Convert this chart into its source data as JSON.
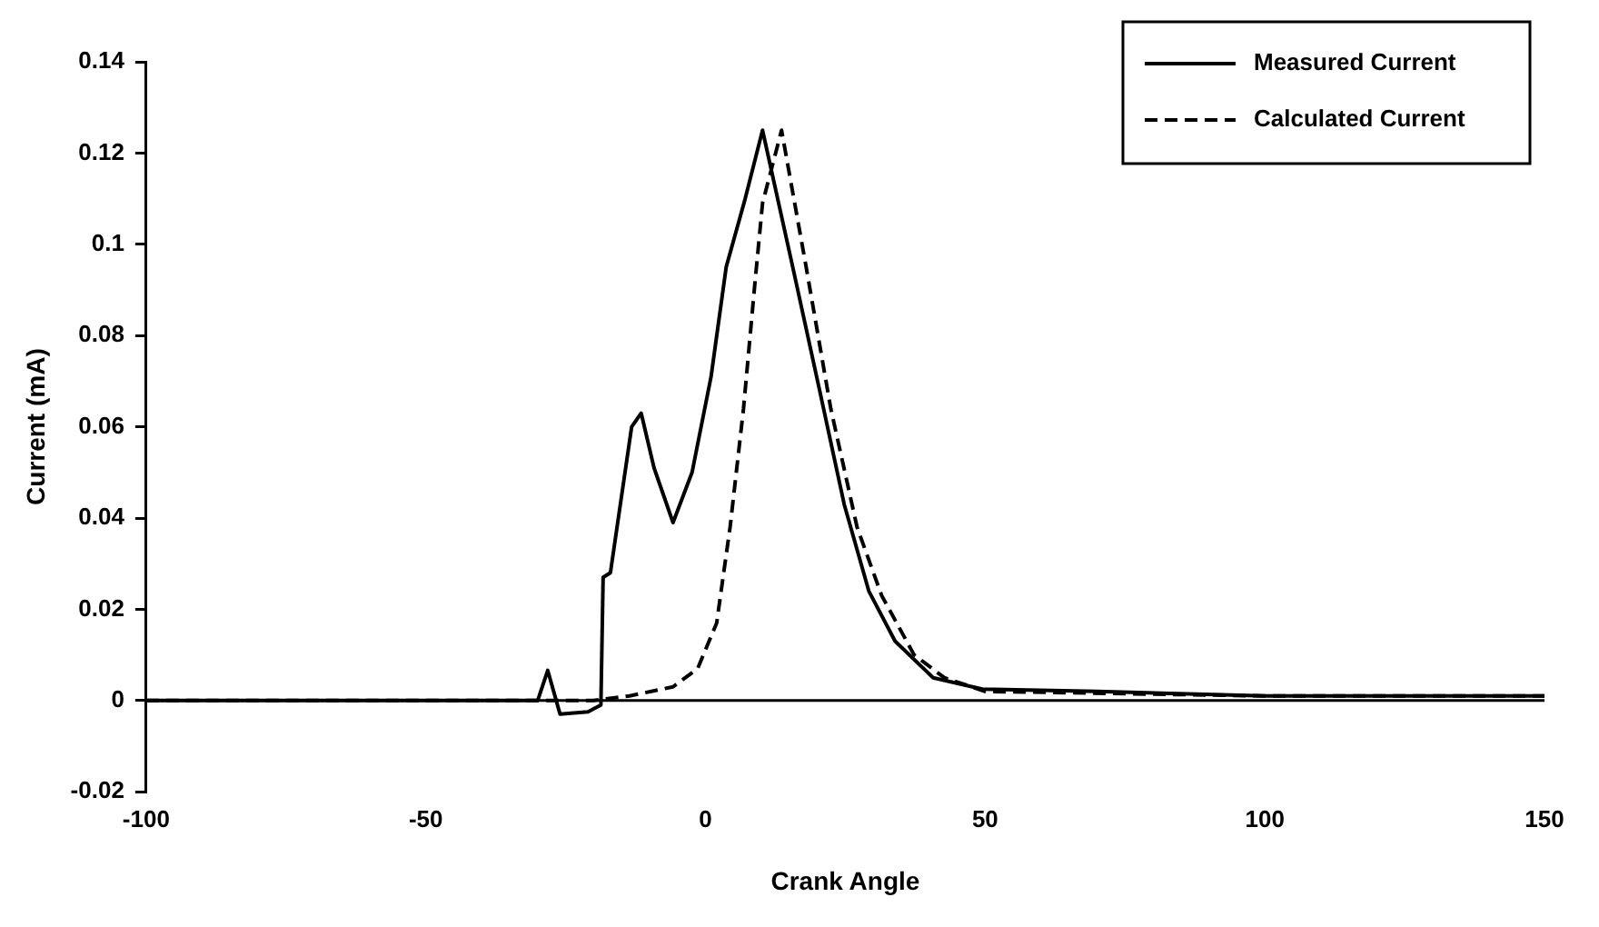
{
  "chart_data": {
    "type": "line",
    "xlabel": "Crank Angle",
    "ylabel": "Current (mA)",
    "xlim": [
      -100,
      150
    ],
    "xticks": [
      -100,
      -50,
      0,
      50,
      100,
      150
    ],
    "ylim": [
      -0.02,
      0.14
    ],
    "yticks": [
      -0.02,
      0,
      0.02,
      0.04,
      0.06,
      0.08,
      0.1,
      0.12,
      0.14
    ],
    "grid": false,
    "legend": "top right",
    "marker": "none",
    "ref_lines": [
      {
        "axis": "y",
        "value": 0,
        "color": "#000000"
      }
    ],
    "series": [
      {
        "name": "Measured Current",
        "color": "#000000",
        "line_style": "solid",
        "x": [
          -100,
          -50,
          -30,
          -28.2,
          -26,
          -21,
          -18.7,
          -18.3,
          -17,
          -13.2,
          -11.5,
          -9.2,
          -5.8,
          -2.4,
          1,
          3.7,
          7.1,
          10.2,
          15.6,
          20.4,
          24.8,
          29.2,
          33.9,
          40.7,
          49.5,
          70,
          100,
          150
        ],
        "values": [
          0,
          0,
          0,
          0.0066,
          -0.003,
          -0.0025,
          -0.001,
          0.027,
          0.028,
          0.06,
          0.063,
          0.051,
          0.039,
          0.05,
          0.071,
          0.095,
          0.11,
          0.125,
          0.095,
          0.068,
          0.043,
          0.024,
          0.013,
          0.005,
          0.0025,
          0.002,
          0.001,
          0.001
        ]
      },
      {
        "name": "Calculated Current",
        "color": "#000000",
        "line_style": "dashed",
        "x": [
          -100,
          -50,
          -20,
          -13.6,
          -5.8,
          -1.4,
          2,
          4.4,
          6.8,
          8.8,
          10.2,
          13.6,
          18,
          22.4,
          27.1,
          31.5,
          37.3,
          42.7,
          50,
          100,
          150
        ],
        "values": [
          0,
          0,
          0,
          0.001,
          0.003,
          0.007,
          0.017,
          0.038,
          0.064,
          0.091,
          0.109,
          0.125,
          0.095,
          0.064,
          0.038,
          0.023,
          0.01,
          0.005,
          0.002,
          0.001,
          0.001
        ]
      }
    ]
  }
}
